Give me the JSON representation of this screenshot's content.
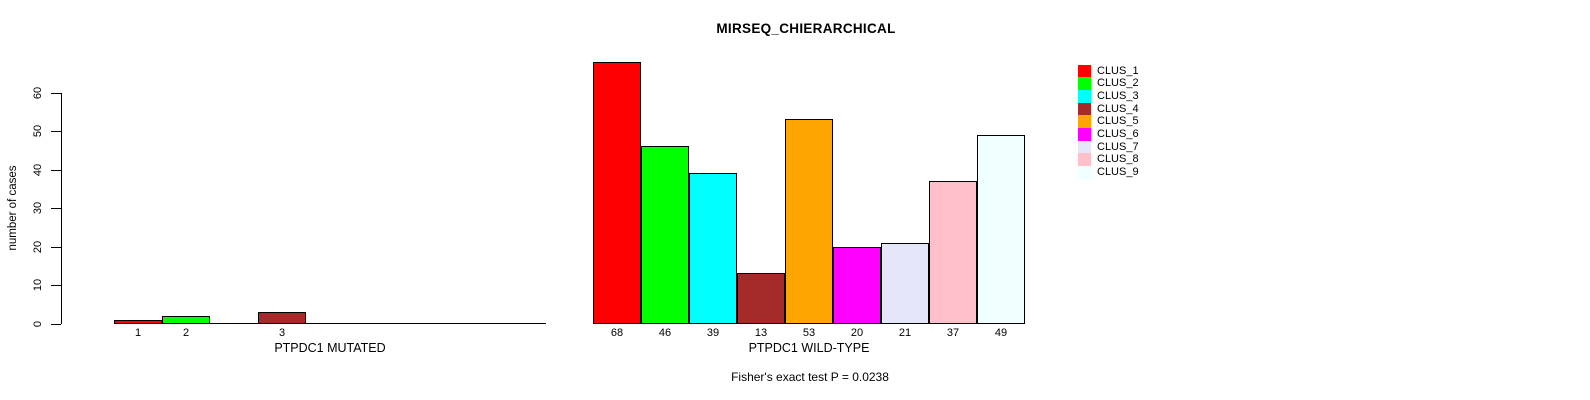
{
  "chart_data": {
    "type": "bar",
    "title": "MIRSEQ_CHIERARCHICAL",
    "ylabel": "number of cases",
    "xlabel": "",
    "categories": [
      "PTPDC1 MUTATED",
      "PTPDC1 WILD-TYPE"
    ],
    "series": [
      {
        "name": "CLUS_1",
        "color": "#FF0000",
        "values": [
          1,
          68
        ]
      },
      {
        "name": "CLUS_2",
        "color": "#00FF00",
        "values": [
          2,
          46
        ]
      },
      {
        "name": "CLUS_3",
        "color": "#00FFFF",
        "values": [
          0,
          39
        ]
      },
      {
        "name": "CLUS_4",
        "color": "#A52A2A",
        "values": [
          3,
          13
        ]
      },
      {
        "name": "CLUS_5",
        "color": "#FFA500",
        "values": [
          0,
          53
        ]
      },
      {
        "name": "CLUS_6",
        "color": "#FF00FF",
        "values": [
          0,
          20
        ]
      },
      {
        "name": "CLUS_7",
        "color": "#E6E6FA",
        "values": [
          0,
          21
        ]
      },
      {
        "name": "CLUS_8",
        "color": "#FFC0CB",
        "values": [
          0,
          37
        ]
      },
      {
        "name": "CLUS_9",
        "color": "#F0FFFF",
        "values": [
          0,
          49
        ]
      }
    ],
    "yticks": [
      0,
      10,
      20,
      30,
      40,
      50,
      60
    ],
    "ylim": [
      0,
      60
    ],
    "grid": false,
    "legend_position": "right",
    "bar_border_color": "#000000",
    "annotation": "Fisher's exact test P = 0.0238"
  }
}
